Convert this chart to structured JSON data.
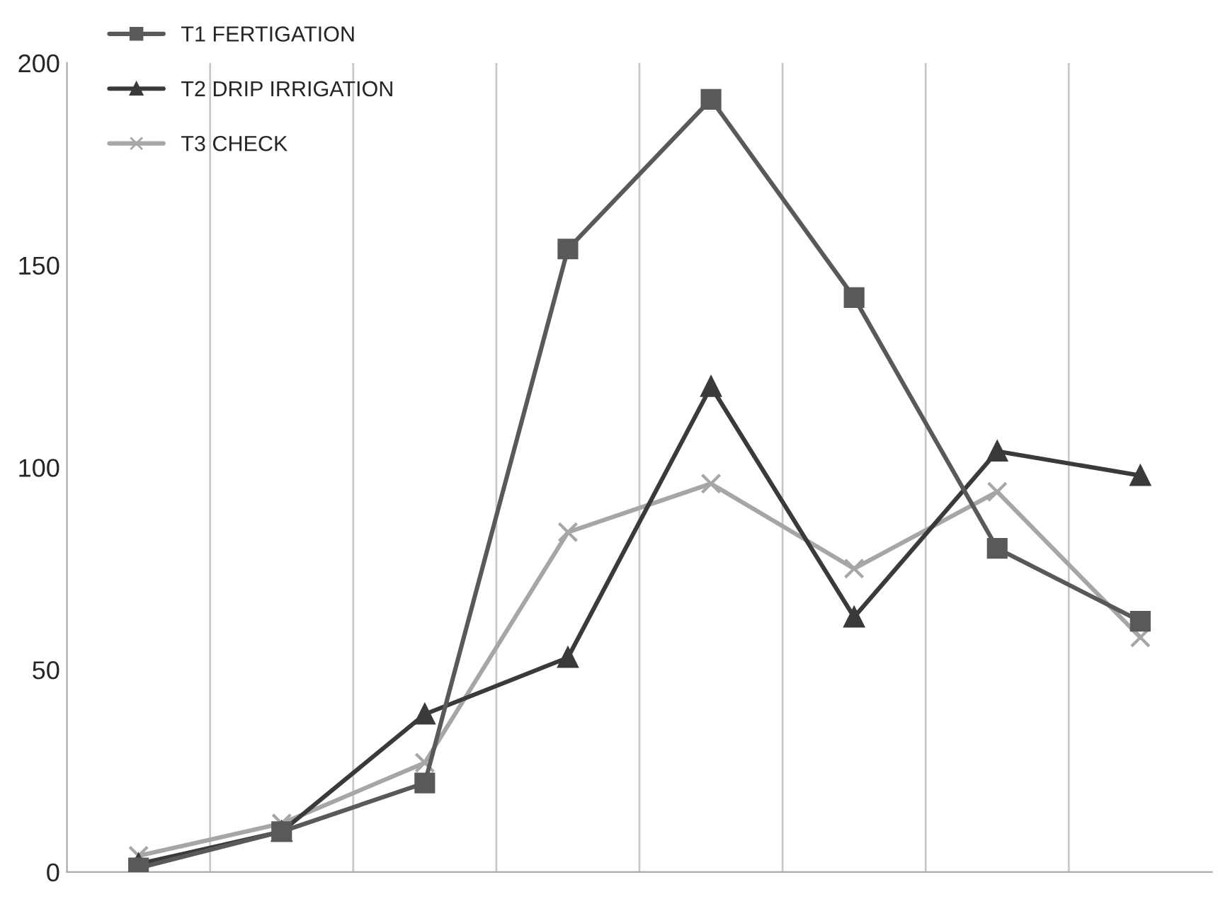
{
  "chart_data": {
    "type": "line",
    "categories": [
      null,
      null,
      null,
      null,
      null,
      null,
      null,
      null
    ],
    "series": [
      {
        "name": "T1 FERTIGATION",
        "color": "#595959",
        "marker": "square",
        "values": [
          1,
          10,
          22,
          154,
          191,
          142,
          80,
          62
        ]
      },
      {
        "name": "T2 DRIP IRRIGATION",
        "color": "#3a3a3a",
        "marker": "triangle",
        "values": [
          2,
          10,
          39,
          53,
          120,
          63,
          104,
          98
        ]
      },
      {
        "name": "T3 CHECK",
        "color": "#a6a6a6",
        "marker": "cross",
        "values": [
          4,
          12,
          27,
          84,
          96,
          75,
          94,
          58
        ]
      }
    ],
    "ylim": [
      0,
      200
    ],
    "yticks": [
      0,
      50,
      100,
      150,
      200
    ],
    "grid": "x",
    "legend": "top left",
    "line_style": "solid"
  }
}
